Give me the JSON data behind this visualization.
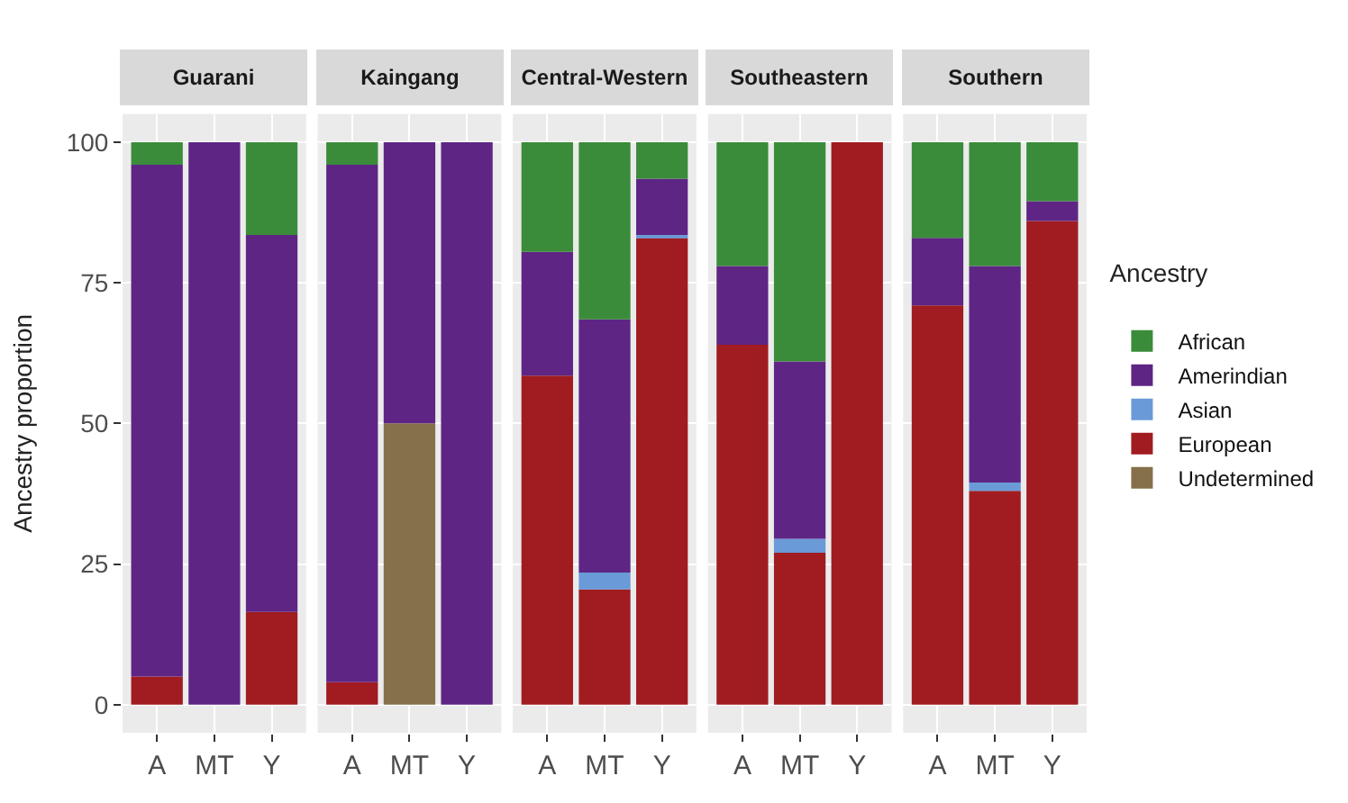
{
  "chart_data": [
    {
      "type": "bar",
      "stacked": true,
      "title": "Guarani",
      "ylabel": "Ancestry proportion",
      "legend": "right",
      "legend_title": "Ancestry",
      "categories": [
        "A",
        "MT",
        "Y"
      ],
      "ylim": [
        -5,
        105
      ],
      "yticks": [
        0,
        25,
        50,
        75,
        100
      ],
      "grid": true,
      "series": [
        {
          "name": "Undetermined",
          "color": "#85704a",
          "values": [
            0,
            0,
            0
          ]
        },
        {
          "name": "European",
          "color": "#a01c20",
          "values": [
            5,
            0,
            16.5
          ]
        },
        {
          "name": "Asian",
          "color": "#6a9ad8",
          "values": [
            0,
            0,
            0
          ]
        },
        {
          "name": "Amerindian",
          "color": "#5e2585",
          "values": [
            91,
            100,
            67
          ]
        },
        {
          "name": "African",
          "color": "#3a8c3a",
          "values": [
            4,
            0,
            16.5
          ]
        }
      ]
    },
    {
      "type": "bar",
      "stacked": true,
      "title": "Kaingang",
      "categories": [
        "A",
        "MT",
        "Y"
      ],
      "ylim": [
        -5,
        105
      ],
      "yticks": [
        0,
        25,
        50,
        75,
        100
      ],
      "grid": true,
      "tick_labels": "x",
      "series": [
        {
          "color": "#85704a",
          "values": [
            0,
            50,
            0
          ]
        },
        {
          "color": "#a01c20",
          "values": [
            4,
            0,
            0
          ]
        },
        {
          "color": "#6a9ad8",
          "values": [
            0,
            0,
            0
          ]
        },
        {
          "color": "#5e2585",
          "values": [
            92,
            50,
            100
          ]
        },
        {
          "color": "#3a8c3a",
          "values": [
            4,
            0,
            0
          ]
        }
      ]
    },
    {
      "type": "bar",
      "stacked": true,
      "title": "Central-Western",
      "categories": [
        "A",
        "MT",
        "Y"
      ],
      "ylim": [
        -5,
        105
      ],
      "yticks": [
        0,
        25,
        50,
        75,
        100
      ],
      "grid": true,
      "tick_labels": "x",
      "series": [
        {
          "color": "#85704a",
          "values": [
            0,
            0,
            0
          ]
        },
        {
          "color": "#a01c20",
          "values": [
            58.5,
            20.5,
            83
          ]
        },
        {
          "color": "#6a9ad8",
          "values": [
            0,
            3,
            0.5
          ]
        },
        {
          "color": "#5e2585",
          "values": [
            22,
            45,
            10
          ]
        },
        {
          "color": "#3a8c3a",
          "values": [
            19.5,
            31.5,
            6.5
          ]
        }
      ]
    },
    {
      "type": "bar",
      "stacked": true,
      "title": "Southeastern",
      "categories": [
        "A",
        "MT",
        "Y"
      ],
      "ylim": [
        -5,
        105
      ],
      "yticks": [
        0,
        25,
        50,
        75,
        100
      ],
      "grid": true,
      "tick_labels": "x",
      "series": [
        {
          "color": "#85704a",
          "values": [
            0,
            0,
            0
          ]
        },
        {
          "color": "#a01c20",
          "values": [
            64,
            27,
            100
          ]
        },
        {
          "color": "#6a9ad8",
          "values": [
            0,
            2.5,
            0
          ]
        },
        {
          "color": "#5e2585",
          "values": [
            14,
            31.5,
            0
          ]
        },
        {
          "color": "#3a8c3a",
          "values": [
            22,
            39,
            0
          ]
        }
      ]
    },
    {
      "type": "bar",
      "stacked": true,
      "title": "Southern",
      "categories": [
        "A",
        "MT",
        "Y"
      ],
      "ylim": [
        -5,
        105
      ],
      "yticks": [
        0,
        25,
        50,
        75,
        100
      ],
      "grid": true,
      "tick_labels": "x",
      "series": [
        {
          "color": "#85704a",
          "values": [
            0,
            0,
            0
          ]
        },
        {
          "color": "#a01c20",
          "values": [
            71,
            38,
            86
          ]
        },
        {
          "color": "#6a9ad8",
          "values": [
            0,
            1.5,
            0
          ]
        },
        {
          "color": "#5e2585",
          "values": [
            12,
            38.5,
            3.5
          ]
        },
        {
          "color": "#3a8c3a",
          "values": [
            17,
            22,
            10.5
          ]
        }
      ]
    }
  ]
}
